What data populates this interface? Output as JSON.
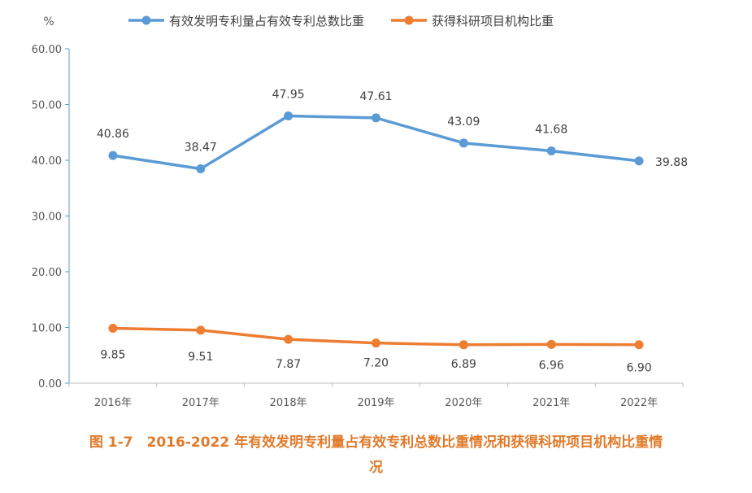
{
  "caption": {
    "line1": "图 1-7　2016-2022 年有效发明专利量占有效专利总数比重情况和获得科研项目机构比重情",
    "line2": "况"
  },
  "chart_data": {
    "type": "line",
    "unit": "%",
    "categories": [
      "2016年",
      "2017年",
      "2018年",
      "2019年",
      "2020年",
      "2021年",
      "2022年"
    ],
    "ylim": [
      0,
      60
    ],
    "yticks": [
      "0.00",
      "10.00",
      "20.00",
      "30.00",
      "40.00",
      "50.00",
      "60.00"
    ],
    "legend_position": "top",
    "grid": false,
    "series": [
      {
        "name": "有效发明专利量占有效专利总数比重",
        "color": "#5B9BD5",
        "values": [
          40.86,
          38.47,
          47.95,
          47.61,
          43.09,
          41.68,
          39.88
        ],
        "labels": [
          "40.86",
          "38.47",
          "47.95",
          "47.61",
          "43.09",
          "41.68",
          "39.88"
        ]
      },
      {
        "name": "获得科研项目机构比重",
        "color": "#ED7D31",
        "values": [
          9.85,
          9.51,
          7.87,
          7.2,
          6.89,
          6.96,
          6.9
        ],
        "labels": [
          "9.85",
          "9.51",
          "7.87",
          "7.20",
          "6.89",
          "6.96",
          "6.90"
        ]
      }
    ]
  }
}
